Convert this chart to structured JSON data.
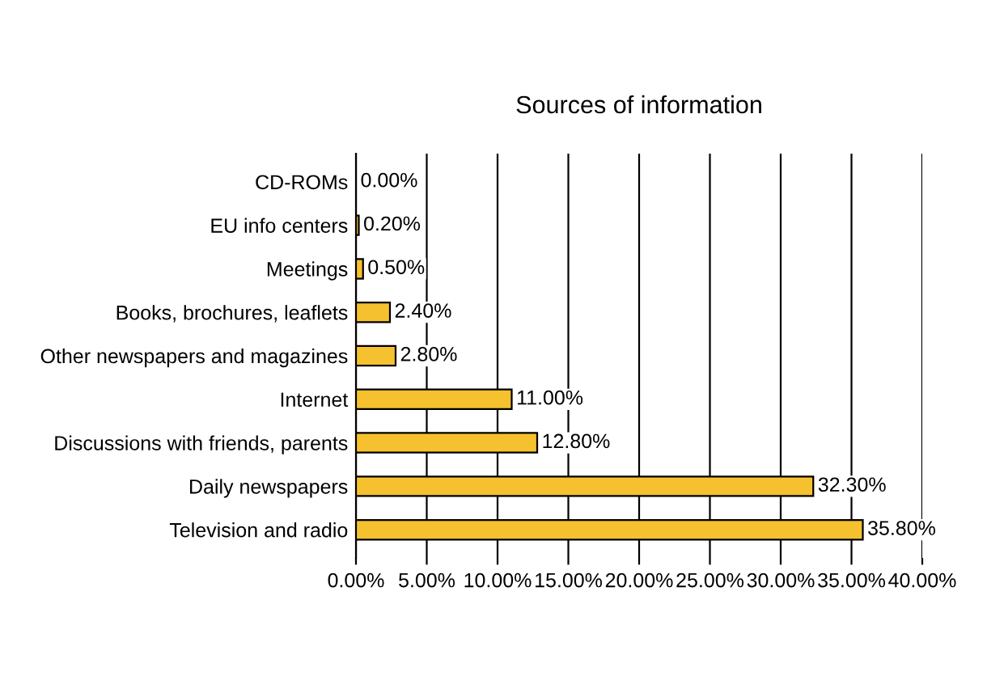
{
  "chart_data": {
    "type": "bar",
    "orientation": "horizontal",
    "title": "Sources of information",
    "categories": [
      "CD-ROMs",
      "EU info centers",
      "Meetings",
      "Books, brochures, leaflets",
      "Other newspapers and magazines",
      "Internet",
      "Discussions with friends, parents",
      "Daily newspapers",
      "Television and radio"
    ],
    "values": [
      0.0,
      0.2,
      0.5,
      2.4,
      2.8,
      11.0,
      12.8,
      32.3,
      35.8
    ],
    "value_labels": [
      "0.00%",
      "0.20%",
      "0.50%",
      "2.40%",
      "2.80%",
      "11.00%",
      "12.80%",
      "32.30%",
      "35.80%"
    ],
    "color": "#f5c12e",
    "xlim": [
      0,
      40
    ],
    "xticks": [
      {
        "value": 0,
        "label": "0.00%"
      },
      {
        "value": 5,
        "label": "5.00%"
      },
      {
        "value": 10,
        "label": "10.00%"
      },
      {
        "value": 15,
        "label": "15.00%"
      },
      {
        "value": 20,
        "label": "20.00%"
      },
      {
        "value": 25,
        "label": "25.00%"
      },
      {
        "value": 30,
        "label": "30.00%"
      },
      {
        "value": 35,
        "label": "35.00%"
      },
      {
        "value": 40,
        "label": "40.00%"
      }
    ],
    "grid": "x",
    "legend": false
  }
}
